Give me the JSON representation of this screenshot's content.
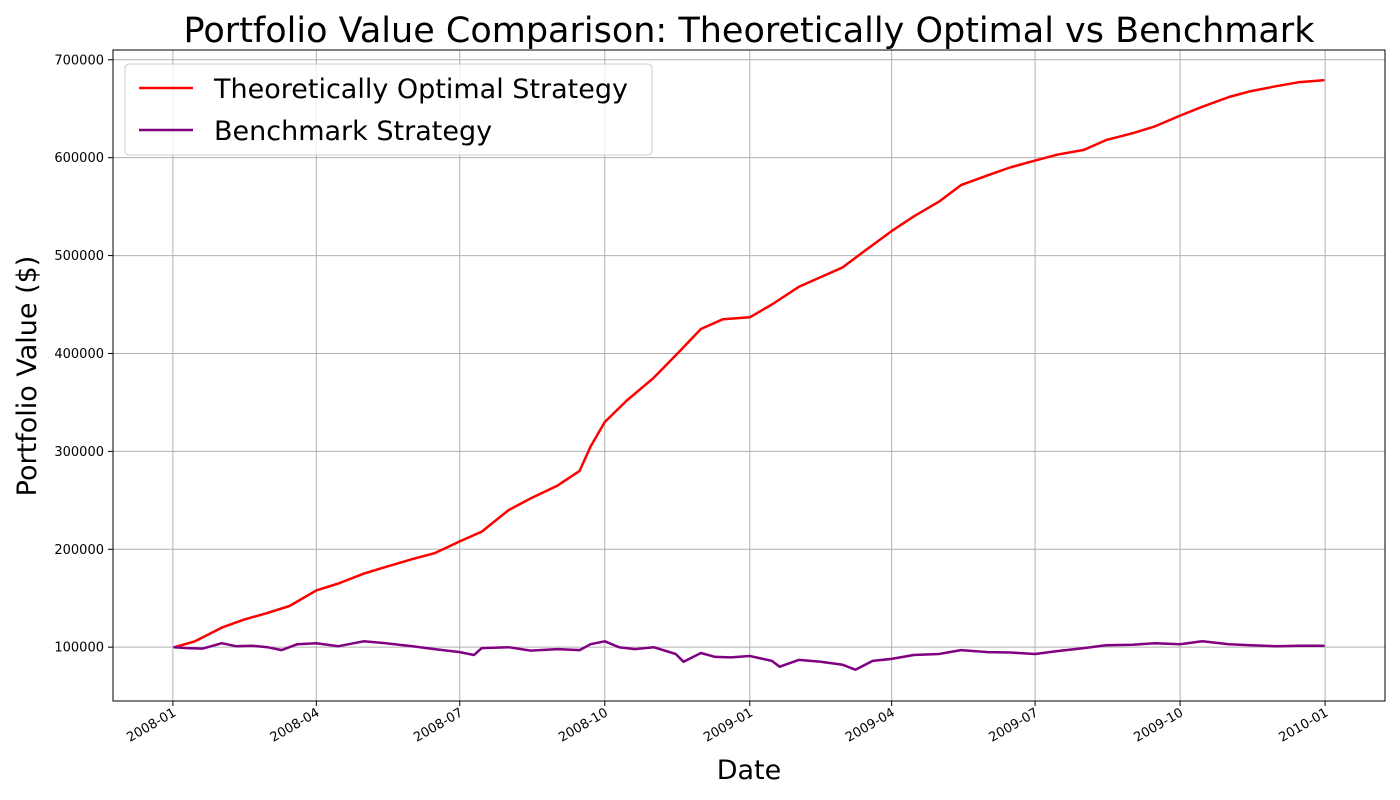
{
  "chart_data": {
    "type": "line",
    "title": "Portfolio Value Comparison: Theoretically Optimal vs Benchmark",
    "xlabel": "Date",
    "ylabel": "Portfolio Value ($)",
    "xlim": [
      "2007-11-24",
      "2010-02-08"
    ],
    "ylim": [
      45000,
      710000
    ],
    "x_ticks": [
      "2008-01",
      "2008-04",
      "2008-07",
      "2008-10",
      "2009-01",
      "2009-04",
      "2009-07",
      "2009-10",
      "2010-01"
    ],
    "y_ticks": [
      100000,
      200000,
      300000,
      400000,
      500000,
      600000,
      700000
    ],
    "grid": true,
    "legend_position": "top-left",
    "series": [
      {
        "name": "Theoretically Optimal Strategy",
        "color": "#ff0000",
        "points": [
          [
            "2008-01-02",
            100000
          ],
          [
            "2008-01-15",
            106000
          ],
          [
            "2008-02-01",
            120000
          ],
          [
            "2008-02-15",
            128000
          ],
          [
            "2008-03-01",
            135000
          ],
          [
            "2008-03-15",
            142000
          ],
          [
            "2008-04-01",
            158000
          ],
          [
            "2008-04-15",
            165000
          ],
          [
            "2008-05-01",
            175000
          ],
          [
            "2008-05-15",
            182000
          ],
          [
            "2008-06-01",
            190000
          ],
          [
            "2008-06-15",
            196000
          ],
          [
            "2008-07-01",
            208000
          ],
          [
            "2008-07-15",
            218000
          ],
          [
            "2008-08-01",
            240000
          ],
          [
            "2008-08-15",
            252000
          ],
          [
            "2008-09-01",
            265000
          ],
          [
            "2008-09-15",
            280000
          ],
          [
            "2008-09-22",
            305000
          ],
          [
            "2008-10-01",
            330000
          ],
          [
            "2008-10-15",
            352000
          ],
          [
            "2008-11-01",
            375000
          ],
          [
            "2008-11-15",
            398000
          ],
          [
            "2008-12-01",
            425000
          ],
          [
            "2008-12-15",
            435000
          ],
          [
            "2009-01-01",
            437000
          ],
          [
            "2009-01-15",
            450000
          ],
          [
            "2009-02-01",
            468000
          ],
          [
            "2009-02-15",
            478000
          ],
          [
            "2009-03-01",
            488000
          ],
          [
            "2009-03-15",
            505000
          ],
          [
            "2009-04-01",
            525000
          ],
          [
            "2009-04-15",
            540000
          ],
          [
            "2009-05-01",
            555000
          ],
          [
            "2009-05-15",
            572000
          ],
          [
            "2009-06-01",
            582000
          ],
          [
            "2009-06-15",
            590000
          ],
          [
            "2009-07-01",
            597000
          ],
          [
            "2009-07-15",
            603000
          ],
          [
            "2009-08-01",
            608000
          ],
          [
            "2009-08-15",
            618000
          ],
          [
            "2009-09-01",
            625000
          ],
          [
            "2009-09-15",
            632000
          ],
          [
            "2009-10-01",
            643000
          ],
          [
            "2009-10-15",
            652000
          ],
          [
            "2009-11-01",
            662000
          ],
          [
            "2009-11-15",
            668000
          ],
          [
            "2009-12-01",
            673000
          ],
          [
            "2009-12-15",
            677000
          ],
          [
            "2009-12-31",
            679000
          ]
        ]
      },
      {
        "name": "Benchmark Strategy",
        "color": "#800080",
        "points": [
          [
            "2008-01-02",
            100000
          ],
          [
            "2008-01-10",
            99000
          ],
          [
            "2008-01-20",
            98500
          ],
          [
            "2008-02-01",
            104000
          ],
          [
            "2008-02-10",
            101000
          ],
          [
            "2008-02-20",
            101500
          ],
          [
            "2008-03-01",
            100000
          ],
          [
            "2008-03-10",
            97000
          ],
          [
            "2008-03-20",
            103000
          ],
          [
            "2008-04-01",
            104000
          ],
          [
            "2008-04-15",
            101000
          ],
          [
            "2008-05-01",
            106000
          ],
          [
            "2008-05-15",
            104000
          ],
          [
            "2008-06-01",
            101000
          ],
          [
            "2008-06-15",
            98000
          ],
          [
            "2008-07-01",
            95000
          ],
          [
            "2008-07-10",
            92000
          ],
          [
            "2008-07-15",
            99000
          ],
          [
            "2008-08-01",
            100000
          ],
          [
            "2008-08-15",
            96500
          ],
          [
            "2008-09-01",
            98000
          ],
          [
            "2008-09-15",
            97000
          ],
          [
            "2008-09-22",
            103000
          ],
          [
            "2008-10-01",
            106000
          ],
          [
            "2008-10-10",
            100000
          ],
          [
            "2008-10-20",
            98000
          ],
          [
            "2008-11-01",
            100000
          ],
          [
            "2008-11-15",
            93000
          ],
          [
            "2008-11-20",
            85000
          ],
          [
            "2008-12-01",
            94000
          ],
          [
            "2008-12-10",
            90000
          ],
          [
            "2008-12-20",
            89500
          ],
          [
            "2009-01-01",
            91000
          ],
          [
            "2009-01-15",
            86000
          ],
          [
            "2009-01-20",
            80000
          ],
          [
            "2009-02-01",
            87000
          ],
          [
            "2009-02-15",
            85000
          ],
          [
            "2009-03-01",
            82000
          ],
          [
            "2009-03-09",
            77000
          ],
          [
            "2009-03-20",
            86000
          ],
          [
            "2009-04-01",
            88000
          ],
          [
            "2009-04-15",
            92000
          ],
          [
            "2009-05-01",
            93000
          ],
          [
            "2009-05-15",
            97000
          ],
          [
            "2009-06-01",
            95000
          ],
          [
            "2009-06-15",
            94500
          ],
          [
            "2009-07-01",
            93000
          ],
          [
            "2009-07-15",
            96000
          ],
          [
            "2009-08-01",
            99000
          ],
          [
            "2009-08-15",
            102000
          ],
          [
            "2009-09-01",
            102500
          ],
          [
            "2009-09-15",
            104000
          ],
          [
            "2009-10-01",
            103000
          ],
          [
            "2009-10-15",
            106000
          ],
          [
            "2009-11-01",
            103000
          ],
          [
            "2009-11-15",
            102000
          ],
          [
            "2009-12-01",
            101000
          ],
          [
            "2009-12-15",
            101500
          ],
          [
            "2009-12-31",
            101500
          ]
        ]
      }
    ]
  }
}
